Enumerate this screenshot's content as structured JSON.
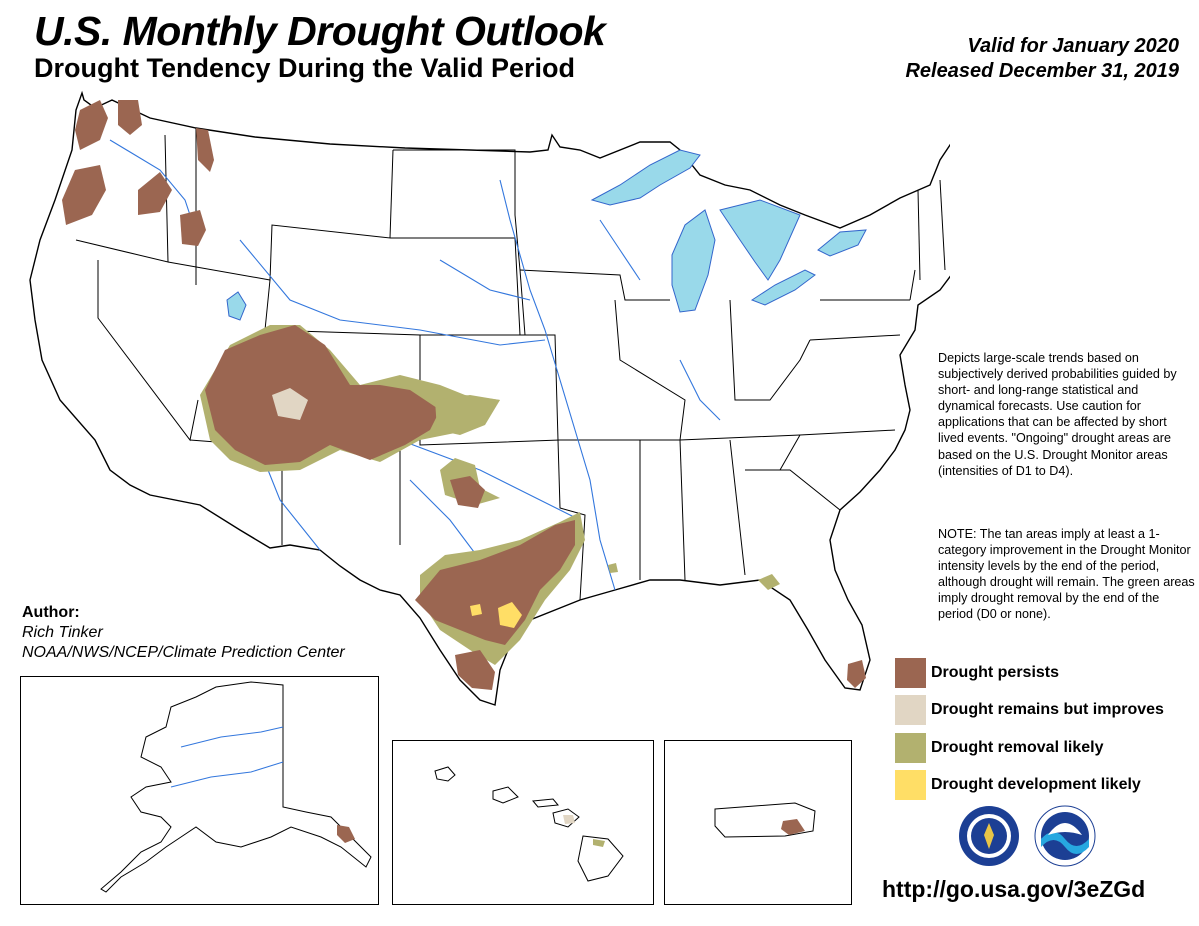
{
  "header": {
    "title": "U.S. Monthly Drought Outlook",
    "subtitle": "Drought Tendency During the Valid Period",
    "valid_for": "Valid for January 2020",
    "released": "Released December 31, 2019"
  },
  "description": "Depicts large-scale trends based on subjectively derived probabilities guided by short- and long-range statistical and dynamical forecasts. Use caution for applications that can be affected by short lived events. \"Ongoing\" drought areas are based on the U.S. Drought Monitor areas (intensities of D1 to D4).",
  "note": "NOTE: The tan areas imply at least a 1-category improvement in the Drought Monitor intensity levels by the end of the period, although drought will remain. The green areas imply drought removal by the end of the period (D0 or none).",
  "author": {
    "heading": "Author:",
    "name": "Rich Tinker",
    "organization": "NOAA/NWS/NCEP/Climate Prediction Center"
  },
  "legend": [
    {
      "label": "Drought persists",
      "color": "#9b6651"
    },
    {
      "label": "Drought remains but improves",
      "color": "#e1d6c4"
    },
    {
      "label": "Drought removal likely",
      "color": "#b2b16f"
    },
    {
      "label": "Drought development likely",
      "color": "#ffde66"
    }
  ],
  "colors": {
    "water": "#99d9ea",
    "rivers": "#3377dd",
    "boundaries": "#000000"
  },
  "url": "http://go.usa.gov/3eZGd"
}
